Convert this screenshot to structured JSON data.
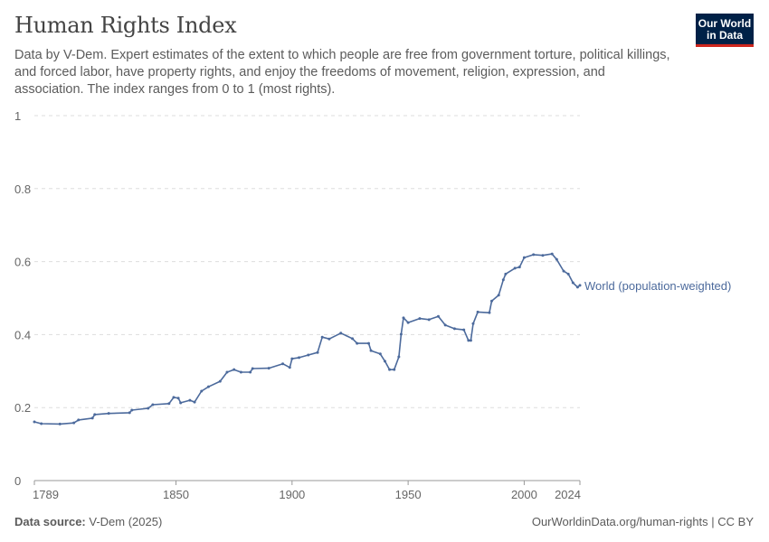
{
  "header": {
    "title": "Human Rights Index",
    "subtitle": "Data by V-Dem. Expert estimates of the extent to which people are free from government torture, political killings, and forced labor, have property rights, and enjoy the freedoms of movement, religion, expression, and association. The index ranges from 0 to 1 (most rights).",
    "logo_text": "Our World in Data"
  },
  "footer": {
    "source_label": "Data source:",
    "source_value": "V-Dem (2025)",
    "right": "OurWorldinData.org/human-rights | CC BY"
  },
  "colors": {
    "series": "#4c6a9c",
    "grid": "#dddddd",
    "logo_bg": "#002147",
    "logo_accent": "#ce261e"
  },
  "chart_data": {
    "type": "line",
    "title": "Human Rights Index",
    "xlabel": "",
    "ylabel": "",
    "xlim": [
      1789,
      2024
    ],
    "ylim": [
      0,
      1
    ],
    "grid": "horizontal dashed",
    "x_ticks": [
      "1789",
      "1850",
      "1900",
      "1950",
      "2000",
      "2024"
    ],
    "y_ticks": [
      "0",
      "0.2",
      "0.4",
      "0.6",
      "0.8",
      "1"
    ],
    "series": [
      {
        "name": "World (population-weighted)",
        "x": [
          1789,
          1792,
          1800,
          1806,
          1808,
          1814,
          1815,
          1821,
          1830,
          1831,
          1838,
          1840,
          1847,
          1849,
          1851,
          1852,
          1856,
          1858,
          1861,
          1864,
          1869,
          1872,
          1875,
          1878,
          1882,
          1883,
          1890,
          1896,
          1899,
          1900,
          1903,
          1907,
          1911,
          1913,
          1916,
          1921,
          1926,
          1928,
          1933,
          1934,
          1938,
          1940,
          1942,
          1944,
          1946,
          1947,
          1948,
          1950,
          1955,
          1959,
          1963,
          1966,
          1970,
          1974,
          1976,
          1977,
          1978,
          1980,
          1985,
          1986,
          1989,
          1991,
          1992,
          1996,
          1998,
          2000,
          2004,
          2008,
          2012,
          2014,
          2017,
          2019,
          2021,
          2023,
          2024
        ],
        "y": [
          0.161,
          0.156,
          0.155,
          0.158,
          0.166,
          0.171,
          0.181,
          0.184,
          0.186,
          0.193,
          0.198,
          0.208,
          0.211,
          0.228,
          0.226,
          0.213,
          0.22,
          0.215,
          0.245,
          0.257,
          0.272,
          0.297,
          0.304,
          0.297,
          0.297,
          0.307,
          0.308,
          0.32,
          0.31,
          0.334,
          0.337,
          0.344,
          0.351,
          0.393,
          0.388,
          0.404,
          0.389,
          0.376,
          0.376,
          0.356,
          0.347,
          0.327,
          0.304,
          0.304,
          0.339,
          0.401,
          0.446,
          0.433,
          0.444,
          0.441,
          0.45,
          0.426,
          0.416,
          0.413,
          0.384,
          0.384,
          0.43,
          0.462,
          0.46,
          0.492,
          0.508,
          0.55,
          0.566,
          0.582,
          0.585,
          0.611,
          0.619,
          0.617,
          0.621,
          0.606,
          0.574,
          0.566,
          0.542,
          0.53,
          0.535
        ]
      }
    ]
  }
}
